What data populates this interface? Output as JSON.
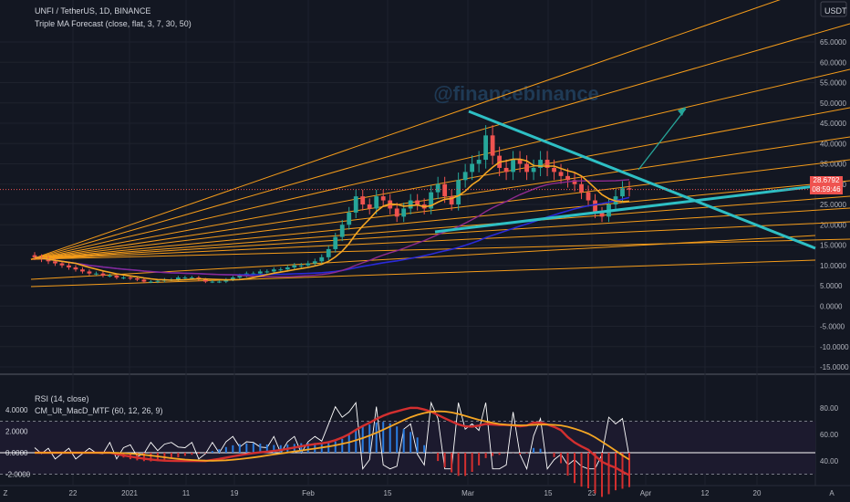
{
  "header": {
    "symbol_line": "UNFI / TetherUS, 1D, BINANCE",
    "indicator_line": "Triple MA Forecast (close, flat, 3, 7, 30, 50)",
    "currency": "USDT",
    "watermark": "@financebinance"
  },
  "price_tag": {
    "price": "28.6792",
    "countdown": "08:59:46"
  },
  "lower_pane": {
    "rsi_label": "RSI (14, close)",
    "macd_label": "CM_Ult_MacD_MTF (60, 12, 26, 9)"
  },
  "colors": {
    "background": "#131722",
    "up": "#26a69a",
    "down": "#ef5350",
    "fan": "#f59c1a",
    "trend": "#2ebfc4",
    "ma_fast": "#f5a623",
    "ma_slow": "#8e2a8e",
    "ma_long": "#2a2ad8",
    "rsi": "#ffffff",
    "macd_up": "#2e7d32",
    "macd_down": "#d32f2f",
    "signal": "#f5a623"
  },
  "chart_data": [
    {
      "type": "candlestick",
      "title": "UNFI / TetherUS, 1D, BINANCE",
      "y_axis_ticks": [
        "65.0000",
        "60.0000",
        "55.0000",
        "50.0000",
        "45.0000",
        "40.0000",
        "35.0000",
        "30.0000",
        "25.0000",
        "20.0000",
        "15.0000",
        "10.0000",
        "5.0000",
        "0.0000",
        "-5.0000",
        "-10.0000",
        "-15.0000"
      ],
      "ylim": [
        -17,
        67
      ],
      "x_axis_ticks": [
        "Z",
        "22",
        "2021",
        "11",
        "19",
        "Feb",
        "15",
        "Mar",
        "15",
        "23",
        "Apr",
        "12",
        "20",
        "A"
      ],
      "close_series": [
        12.0,
        11.5,
        11.0,
        10.5,
        10.0,
        9.5,
        9.0,
        8.5,
        8.0,
        8.0,
        7.5,
        7.5,
        7.0,
        7.0,
        6.8,
        6.5,
        6.0,
        6.0,
        6.2,
        6.5,
        6.5,
        7.0,
        7.0,
        7.0,
        6.5,
        6.0,
        6.0,
        6.0,
        6.5,
        7.0,
        7.5,
        8.0,
        8.0,
        8.5,
        8.5,
        9.0,
        9.0,
        9.5,
        10.0,
        10.0,
        10.5,
        11.0,
        12.0,
        14.0,
        17.0,
        20.0,
        23.0,
        27.0,
        25.0,
        24.0,
        27.0,
        26.0,
        24.0,
        22.0,
        24.0,
        26.0,
        25.0,
        24.0,
        28.0,
        30.0,
        27.0,
        25.0,
        31.0,
        33.0,
        35.0,
        36.0,
        42.0,
        37.0,
        34.0,
        33.0,
        36.0,
        35.0,
        33.0,
        34.0,
        36.0,
        34.0,
        33.0,
        32.0,
        31.0,
        30.0,
        28.0,
        26.0,
        23.0,
        22.0,
        25.0,
        27.0,
        29.0,
        28.68
      ],
      "current_price": 28.6792,
      "lines": [
        "fan lines",
        "descending trendline",
        "ascending trendline",
        "projection arrow",
        "moving averages"
      ]
    },
    {
      "type": "line",
      "name": "RSI (14, close)",
      "right_axis_ticks": [
        "80.00",
        "60.00",
        "40.00"
      ],
      "ylim": [
        30,
        90
      ],
      "bands": [
        70,
        30
      ]
    },
    {
      "type": "bar",
      "name": "CM_Ult_MacD_MTF (60, 12, 26, 9)",
      "left_axis_ticks": [
        "4.0000",
        "2.0000",
        "0.0000",
        "-2.0000"
      ],
      "ylim": [
        -2.5,
        5.5
      ]
    }
  ]
}
